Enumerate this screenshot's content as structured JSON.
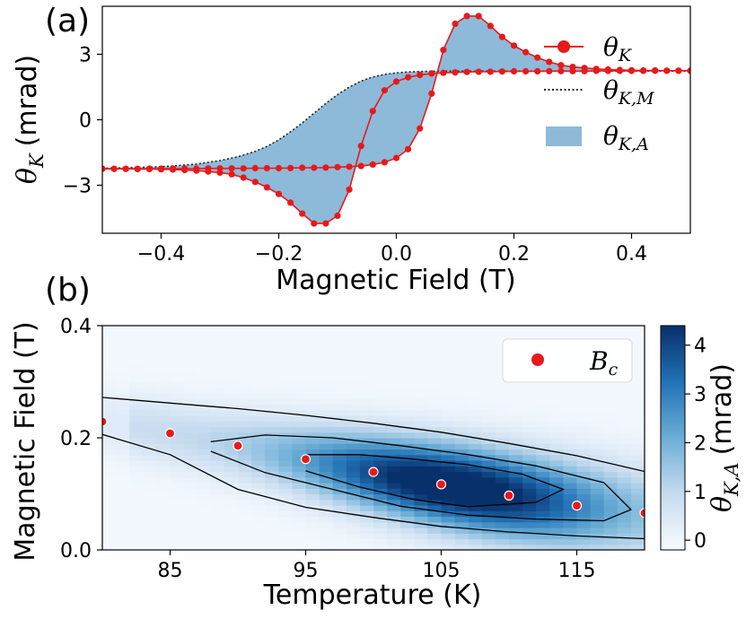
{
  "chart_data": [
    {
      "id": "a",
      "type": "line",
      "panel_label": "(a)",
      "xlabel": "Magnetic Field (T)",
      "ylabel_main": "θ",
      "ylabel_sub": "K",
      "ylabel_unit": "(mrad)",
      "xlim": [
        -0.5,
        0.5
      ],
      "ylim": [
        -5.2,
        5.2
      ],
      "xticks": [
        -0.4,
        -0.2,
        0.0,
        0.2,
        0.4
      ],
      "xtick_labels": [
        "−0.4",
        "−0.2",
        "0.0",
        "0.2",
        "0.4"
      ],
      "yticks": [
        -3,
        0,
        3
      ],
      "ytick_labels": [
        "−3",
        "0",
        "3"
      ],
      "legend": [
        {
          "main": "θ",
          "sub": "K",
          "style": "red-line-dot"
        },
        {
          "main": "θ",
          "sub": "K,M",
          "style": "black-dotted"
        },
        {
          "main": "θ",
          "sub": "K,A",
          "style": "blue-fill"
        }
      ],
      "series": [
        {
          "name": "theta_K_descending",
          "x": [
            0.5,
            0.48,
            0.46,
            0.44,
            0.42,
            0.4,
            0.38,
            0.36,
            0.34,
            0.32,
            0.3,
            0.28,
            0.26,
            0.24,
            0.22,
            0.2,
            0.18,
            0.16,
            0.14,
            0.12,
            0.1,
            0.08,
            0.06,
            0.04,
            0.02,
            0.0,
            -0.02,
            -0.04,
            -0.06,
            -0.08,
            -0.1,
            -0.12,
            -0.14,
            -0.16,
            -0.18,
            -0.2,
            -0.22,
            -0.24,
            -0.26,
            -0.28,
            -0.3,
            -0.32,
            -0.34,
            -0.36,
            -0.38,
            -0.4,
            -0.42,
            -0.44,
            -0.46,
            -0.48,
            -0.5
          ],
          "values": [
            2.25,
            2.25,
            2.25,
            2.25,
            2.24,
            2.24,
            2.24,
            2.24,
            2.24,
            2.23,
            2.23,
            2.23,
            2.23,
            2.22,
            2.22,
            2.22,
            2.21,
            2.2,
            2.2,
            2.19,
            2.17,
            2.15,
            2.12,
            2.05,
            1.95,
            1.75,
            1.35,
            0.4,
            -1.2,
            -3.2,
            -4.4,
            -4.75,
            -4.75,
            -4.3,
            -3.8,
            -3.4,
            -3.1,
            -2.85,
            -2.65,
            -2.5,
            -2.42,
            -2.37,
            -2.33,
            -2.3,
            -2.28,
            -2.27,
            -2.26,
            -2.26,
            -2.25,
            -2.25,
            -2.25
          ]
        },
        {
          "name": "theta_K_ascending",
          "x": [
            -0.5,
            -0.48,
            -0.46,
            -0.44,
            -0.42,
            -0.4,
            -0.38,
            -0.36,
            -0.34,
            -0.32,
            -0.3,
            -0.28,
            -0.26,
            -0.24,
            -0.22,
            -0.2,
            -0.18,
            -0.16,
            -0.14,
            -0.12,
            -0.1,
            -0.08,
            -0.06,
            -0.04,
            -0.02,
            0.0,
            0.02,
            0.04,
            0.06,
            0.08,
            0.1,
            0.12,
            0.14,
            0.16,
            0.18,
            0.2,
            0.22,
            0.24,
            0.26,
            0.28,
            0.3,
            0.32,
            0.34,
            0.36,
            0.38,
            0.4,
            0.42,
            0.44,
            0.46,
            0.48,
            0.5
          ],
          "values": [
            -2.25,
            -2.25,
            -2.25,
            -2.25,
            -2.24,
            -2.24,
            -2.24,
            -2.24,
            -2.24,
            -2.23,
            -2.23,
            -2.23,
            -2.23,
            -2.22,
            -2.22,
            -2.22,
            -2.21,
            -2.2,
            -2.2,
            -2.19,
            -2.17,
            -2.15,
            -2.12,
            -2.05,
            -1.95,
            -1.75,
            -1.35,
            -0.4,
            1.2,
            3.2,
            4.4,
            4.75,
            4.75,
            4.3,
            3.8,
            3.4,
            3.1,
            2.85,
            2.65,
            2.5,
            2.42,
            2.37,
            2.33,
            2.3,
            2.28,
            2.27,
            2.26,
            2.26,
            2.25,
            2.25,
            2.25
          ]
        },
        {
          "name": "theta_KM",
          "x": [
            -0.5,
            -0.46,
            -0.42,
            -0.38,
            -0.34,
            -0.3,
            -0.27,
            -0.24,
            -0.22,
            -0.2,
            -0.18,
            -0.16,
            -0.14,
            -0.12,
            -0.1,
            -0.08,
            -0.06,
            -0.04,
            -0.02,
            0.0,
            0.02,
            0.04,
            0.06,
            0.08,
            0.1,
            0.12,
            0.14,
            0.16,
            0.18,
            0.2,
            0.22,
            0.24,
            0.27,
            0.3,
            0.34,
            0.38,
            0.42,
            0.46,
            0.5
          ],
          "values": [
            -2.22,
            -2.2,
            -2.17,
            -2.12,
            -2.03,
            -1.87,
            -1.7,
            -1.45,
            -1.22,
            -0.92,
            -0.55,
            -0.15,
            0.3,
            0.75,
            1.15,
            1.5,
            1.77,
            1.96,
            2.08,
            2.15,
            2.19,
            2.21,
            2.22,
            2.23,
            2.23,
            2.23,
            2.23,
            2.23,
            2.23,
            2.23,
            2.23,
            2.23,
            2.23,
            2.23,
            2.23,
            2.23,
            2.23,
            2.23,
            2.23
          ]
        }
      ]
    },
    {
      "id": "b",
      "type": "heatmap",
      "panel_label": "(b)",
      "xlabel": "Temperature (K)",
      "ylabel": "Magnetic Field (T)",
      "xlim": [
        80,
        120
      ],
      "ylim": [
        0.0,
        0.4
      ],
      "xticks": [
        85,
        95,
        105,
        115
      ],
      "xtick_labels": [
        "85",
        "95",
        "105",
        "115"
      ],
      "yticks": [
        0.0,
        0.2,
        0.4
      ],
      "ytick_labels": [
        "0.0",
        "0.2",
        "0.4"
      ],
      "colorbar": {
        "label_main": "θ",
        "label_sub": "K,A",
        "label_unit": "(mrad)",
        "range": [
          -0.2,
          4.4
        ],
        "ticks": [
          0,
          1,
          2,
          3,
          4
        ],
        "tick_labels": [
          "0",
          "1",
          "2",
          "3",
          "4"
        ]
      },
      "legend": [
        {
          "main": "B",
          "sub": "c",
          "style": "red-dot"
        }
      ],
      "bc_points": {
        "T": [
          80,
          85,
          90,
          95,
          100,
          105,
          110,
          115,
          120
        ],
        "B": [
          0.229,
          0.208,
          0.186,
          0.162,
          0.139,
          0.117,
          0.097,
          0.079,
          0.066
        ]
      },
      "contours": [
        {
          "level": 1,
          "T": [
            80,
            85,
            90,
            95,
            100,
            105,
            110,
            115,
            120,
            120,
            115,
            110,
            105,
            100,
            95,
            90,
            85,
            80
          ],
          "B": [
            0.272,
            0.262,
            0.252,
            0.24,
            0.226,
            0.21,
            0.19,
            0.168,
            0.14,
            0.02,
            0.025,
            0.032,
            0.042,
            0.058,
            0.076,
            0.108,
            0.17,
            0.206
          ]
        },
        {
          "level": 2,
          "T": [
            88,
            92,
            97,
            102,
            107,
            112,
            117,
            119,
            117,
            112,
            107,
            102,
            97,
            92,
            88
          ],
          "B": [
            0.193,
            0.205,
            0.2,
            0.186,
            0.17,
            0.15,
            0.12,
            0.072,
            0.052,
            0.055,
            0.062,
            0.078,
            0.108,
            0.138,
            0.176
          ]
        },
        {
          "level": 3,
          "T": [
            95,
            99,
            103,
            107,
            111,
            114,
            112,
            107,
            103,
            99,
            95
          ],
          "B": [
            0.17,
            0.17,
            0.162,
            0.152,
            0.135,
            0.108,
            0.085,
            0.077,
            0.09,
            0.112,
            0.141
          ]
        }
      ]
    }
  ]
}
